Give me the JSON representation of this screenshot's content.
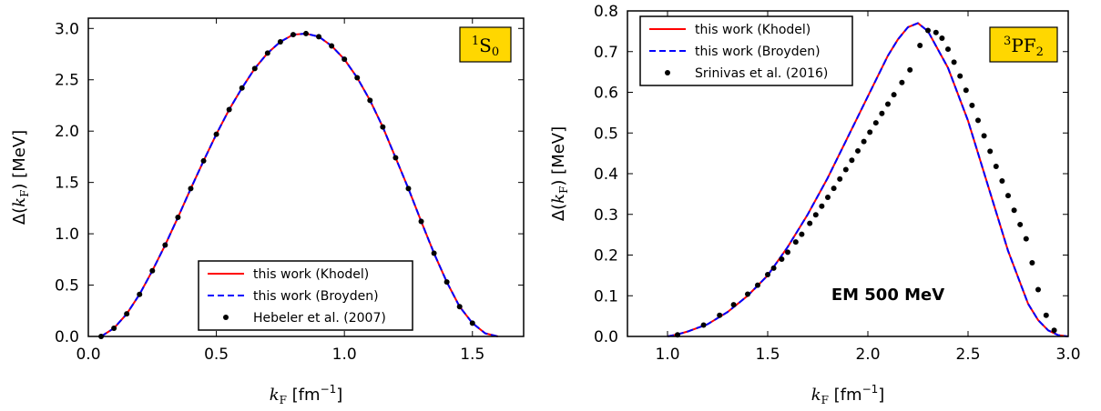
{
  "chart_data": [
    {
      "type": "line",
      "xlabel": {
        "var": "k",
        "sub": "F",
        "unit_pre": " [fm",
        "unit_exp": "−1",
        "unit_post": "]"
      },
      "ylabel": {
        "pre": "Δ(",
        "var": "k",
        "sub": "F",
        "post": ") [MeV]"
      },
      "xlim": [
        0.0,
        1.7
      ],
      "ylim": [
        0.0,
        3.1
      ],
      "xticks": [
        "0.0",
        "0.5",
        "1.0",
        "1.5"
      ],
      "xtick_values": [
        0.0,
        0.5,
        1.0,
        1.5
      ],
      "yticks": [
        "0.0",
        "0.5",
        "1.0",
        "1.5",
        "2.0",
        "2.5",
        "3.0"
      ],
      "ytick_values": [
        0.0,
        0.5,
        1.0,
        1.5,
        2.0,
        2.5,
        3.0
      ],
      "badge": {
        "sup": "1",
        "main": "S",
        "sub": "0"
      },
      "legend_position": "lower-center",
      "legend": [
        "this work (Khodel)",
        "this work (Broyden)",
        "Hebeler et al. (2007)"
      ],
      "series": [
        {
          "name": "this work (Khodel)",
          "style": "solid",
          "color": "#ff0000",
          "x": [
            0.05,
            0.1,
            0.15,
            0.2,
            0.25,
            0.3,
            0.35,
            0.4,
            0.45,
            0.5,
            0.55,
            0.6,
            0.65,
            0.7,
            0.75,
            0.8,
            0.85,
            0.9,
            0.95,
            1.0,
            1.05,
            1.1,
            1.15,
            1.2,
            1.25,
            1.3,
            1.35,
            1.4,
            1.45,
            1.5,
            1.55,
            1.6
          ],
          "y": [
            0.0,
            0.08,
            0.22,
            0.41,
            0.64,
            0.89,
            1.16,
            1.44,
            1.71,
            1.97,
            2.21,
            2.42,
            2.61,
            2.76,
            2.87,
            2.94,
            2.95,
            2.92,
            2.83,
            2.7,
            2.52,
            2.3,
            2.04,
            1.74,
            1.44,
            1.12,
            0.81,
            0.53,
            0.29,
            0.13,
            0.03,
            0.0
          ]
        },
        {
          "name": "this work (Broyden)",
          "style": "dashed",
          "color": "#0000ff",
          "x": [
            0.05,
            0.1,
            0.15,
            0.2,
            0.25,
            0.3,
            0.35,
            0.4,
            0.45,
            0.5,
            0.55,
            0.6,
            0.65,
            0.7,
            0.75,
            0.8,
            0.85,
            0.9,
            0.95,
            1.0,
            1.05,
            1.1,
            1.15,
            1.2,
            1.25,
            1.3,
            1.35,
            1.4,
            1.45,
            1.5,
            1.55,
            1.6
          ],
          "y": [
            0.0,
            0.08,
            0.22,
            0.41,
            0.64,
            0.89,
            1.16,
            1.44,
            1.71,
            1.97,
            2.21,
            2.42,
            2.61,
            2.76,
            2.87,
            2.94,
            2.95,
            2.92,
            2.83,
            2.7,
            2.52,
            2.3,
            2.04,
            1.74,
            1.44,
            1.12,
            0.81,
            0.53,
            0.29,
            0.13,
            0.03,
            0.0
          ]
        },
        {
          "name": "Hebeler et al. (2007)",
          "style": "points",
          "color": "#000000",
          "x": [
            0.05,
            0.1,
            0.15,
            0.2,
            0.25,
            0.3,
            0.35,
            0.4,
            0.45,
            0.5,
            0.55,
            0.6,
            0.65,
            0.7,
            0.75,
            0.8,
            0.85,
            0.9,
            0.95,
            1.0,
            1.05,
            1.1,
            1.15,
            1.2,
            1.25,
            1.3,
            1.35,
            1.4,
            1.45,
            1.5
          ],
          "y": [
            0.0,
            0.08,
            0.22,
            0.41,
            0.64,
            0.89,
            1.16,
            1.44,
            1.71,
            1.97,
            2.21,
            2.42,
            2.61,
            2.76,
            2.87,
            2.94,
            2.95,
            2.92,
            2.83,
            2.7,
            2.52,
            2.3,
            2.04,
            1.74,
            1.44,
            1.12,
            0.81,
            0.53,
            0.29,
            0.13
          ]
        }
      ]
    },
    {
      "type": "line",
      "xlabel": {
        "var": "k",
        "sub": "F",
        "unit_pre": " [fm",
        "unit_exp": "−1",
        "unit_post": "]"
      },
      "ylabel": {
        "pre": "Δ(",
        "var": "k",
        "sub": "F",
        "post": ") [MeV]"
      },
      "xlim": [
        0.8,
        3.0
      ],
      "ylim": [
        0.0,
        0.8
      ],
      "xticks": [
        "1.0",
        "1.5",
        "2.0",
        "2.5",
        "3.0"
      ],
      "xtick_values": [
        1.0,
        1.5,
        2.0,
        2.5,
        3.0
      ],
      "yticks": [
        "0.0",
        "0.1",
        "0.2",
        "0.3",
        "0.4",
        "0.5",
        "0.6",
        "0.7",
        "0.8"
      ],
      "ytick_values": [
        0.0,
        0.1,
        0.2,
        0.3,
        0.4,
        0.5,
        0.6,
        0.7,
        0.8
      ],
      "badge": {
        "sup": "3",
        "main": "PF",
        "sub": "2"
      },
      "annotation": "EM 500 MeV",
      "legend_position": "upper-left",
      "legend": [
        "this work (Khodel)",
        "this work (Broyden)",
        "Srinivas et al. (2016)"
      ],
      "series": [
        {
          "name": "this work (Khodel)",
          "style": "solid",
          "color": "#ff0000",
          "x": [
            1.0,
            1.05,
            1.1,
            1.2,
            1.3,
            1.4,
            1.5,
            1.6,
            1.7,
            1.8,
            1.9,
            2.0,
            2.1,
            2.15,
            2.2,
            2.25,
            2.3,
            2.4,
            2.5,
            2.6,
            2.7,
            2.8,
            2.85,
            2.9,
            2.95,
            3.0
          ],
          "y": [
            0.0,
            0.005,
            0.012,
            0.03,
            0.06,
            0.1,
            0.15,
            0.22,
            0.3,
            0.39,
            0.49,
            0.59,
            0.69,
            0.73,
            0.76,
            0.77,
            0.75,
            0.66,
            0.53,
            0.37,
            0.21,
            0.08,
            0.04,
            0.015,
            0.003,
            0.0
          ]
        },
        {
          "name": "this work (Broyden)",
          "style": "dashed",
          "color": "#0000ff",
          "x": [
            1.0,
            1.05,
            1.1,
            1.2,
            1.3,
            1.4,
            1.5,
            1.6,
            1.7,
            1.8,
            1.9,
            2.0,
            2.1,
            2.15,
            2.2,
            2.25,
            2.3,
            2.4,
            2.5,
            2.6,
            2.7,
            2.8,
            2.85,
            2.9,
            2.95,
            3.0
          ],
          "y": [
            0.0,
            0.005,
            0.012,
            0.03,
            0.06,
            0.1,
            0.15,
            0.22,
            0.3,
            0.39,
            0.49,
            0.59,
            0.69,
            0.73,
            0.76,
            0.77,
            0.75,
            0.66,
            0.53,
            0.37,
            0.21,
            0.08,
            0.04,
            0.015,
            0.003,
            0.0
          ]
        },
        {
          "name": "Srinivas et al. (2016)",
          "style": "points",
          "color": "#000000",
          "x": [
            1.05,
            1.18,
            1.26,
            1.33,
            1.4,
            1.45,
            1.5,
            1.53,
            1.57,
            1.6,
            1.64,
            1.67,
            1.71,
            1.74,
            1.77,
            1.8,
            1.83,
            1.86,
            1.89,
            1.92,
            1.95,
            1.98,
            2.01,
            2.04,
            2.07,
            2.1,
            2.13,
            2.17,
            2.21,
            2.26,
            2.3,
            2.34,
            2.37,
            2.4,
            2.43,
            2.46,
            2.49,
            2.52,
            2.55,
            2.58,
            2.61,
            2.64,
            2.67,
            2.7,
            2.73,
            2.76,
            2.79,
            2.82,
            2.85,
            2.89,
            2.93
          ],
          "y": [
            0.004,
            0.028,
            0.052,
            0.078,
            0.104,
            0.126,
            0.152,
            0.168,
            0.19,
            0.207,
            0.232,
            0.251,
            0.278,
            0.299,
            0.32,
            0.342,
            0.364,
            0.387,
            0.41,
            0.433,
            0.456,
            0.479,
            0.502,
            0.525,
            0.548,
            0.571,
            0.594,
            0.624,
            0.655,
            0.715,
            0.752,
            0.747,
            0.733,
            0.706,
            0.674,
            0.64,
            0.605,
            0.568,
            0.531,
            0.493,
            0.455,
            0.418,
            0.382,
            0.346,
            0.31,
            0.275,
            0.24,
            0.181,
            0.115,
            0.052,
            0.015
          ]
        }
      ]
    }
  ]
}
